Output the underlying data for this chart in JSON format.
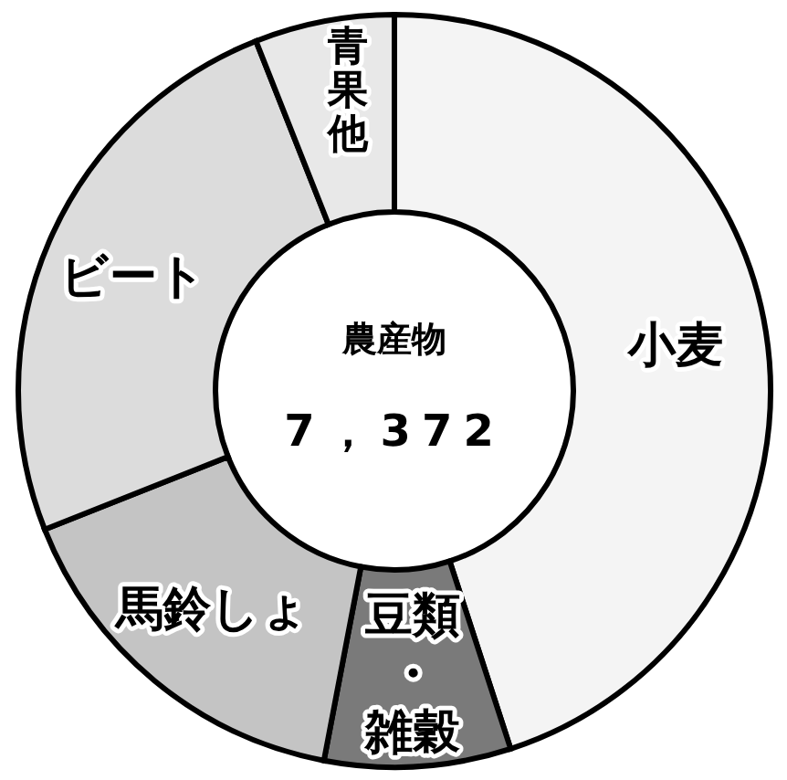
{
  "chart_data": {
    "type": "donut",
    "title": "農産物",
    "annotations": [
      "7，372"
    ],
    "categories": [
      "小麦",
      "豆類・雑穀",
      "馬鈴しょ",
      "ビート",
      "青果他"
    ],
    "values": [
      45,
      8,
      16,
      25,
      6
    ],
    "colors": [
      "#f4f4f4",
      "#7a7a7a",
      "#c4c4c4",
      "#dcdcdc",
      "#e8e8e8"
    ]
  }
}
